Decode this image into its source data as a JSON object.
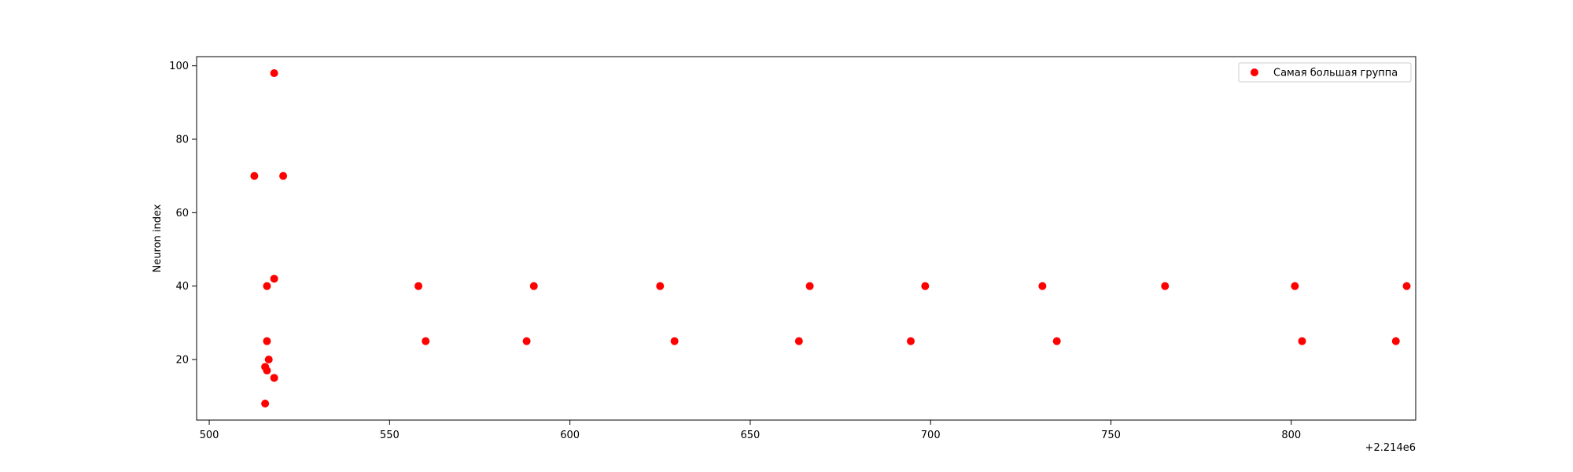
{
  "chart_data": {
    "type": "scatter",
    "title": "",
    "xlabel": "",
    "ylabel": "Neuron index",
    "x_offset_label": "+2.214e6",
    "xlim": [
      496.5,
      834.5
    ],
    "ylim": [
      3.5,
      102.5
    ],
    "x_ticks": [
      500,
      550,
      600,
      650,
      700,
      750,
      800
    ],
    "x_tick_labels": [
      "500",
      "550",
      "600",
      "650",
      "700",
      "750",
      "800"
    ],
    "y_ticks": [
      20,
      40,
      60,
      80,
      100
    ],
    "y_tick_labels": [
      "20",
      "40",
      "60",
      "80",
      "100"
    ],
    "grid": false,
    "legend_position": "top-right",
    "series": [
      {
        "name": "Самая большая группа",
        "color": "#ff0000",
        "marker": "circle",
        "points": [
          {
            "x": 512.5,
            "y": 70
          },
          {
            "x": 520.5,
            "y": 70
          },
          {
            "x": 518.0,
            "y": 98
          },
          {
            "x": 518.0,
            "y": 42
          },
          {
            "x": 516.0,
            "y": 40
          },
          {
            "x": 516.0,
            "y": 25
          },
          {
            "x": 516.5,
            "y": 20
          },
          {
            "x": 515.5,
            "y": 18
          },
          {
            "x": 516.0,
            "y": 17
          },
          {
            "x": 518.0,
            "y": 15
          },
          {
            "x": 515.5,
            "y": 8
          },
          {
            "x": 558.0,
            "y": 40
          },
          {
            "x": 560.0,
            "y": 25
          },
          {
            "x": 588.0,
            "y": 25
          },
          {
            "x": 590.0,
            "y": 40
          },
          {
            "x": 625.0,
            "y": 40
          },
          {
            "x": 629.0,
            "y": 25
          },
          {
            "x": 663.5,
            "y": 25
          },
          {
            "x": 666.5,
            "y": 40
          },
          {
            "x": 694.5,
            "y": 25
          },
          {
            "x": 698.5,
            "y": 40
          },
          {
            "x": 731.0,
            "y": 40
          },
          {
            "x": 735.0,
            "y": 25
          },
          {
            "x": 765.0,
            "y": 40
          },
          {
            "x": 801.0,
            "y": 40
          },
          {
            "x": 803.0,
            "y": 25
          },
          {
            "x": 829.0,
            "y": 25
          },
          {
            "x": 832.0,
            "y": 40
          }
        ]
      }
    ]
  }
}
